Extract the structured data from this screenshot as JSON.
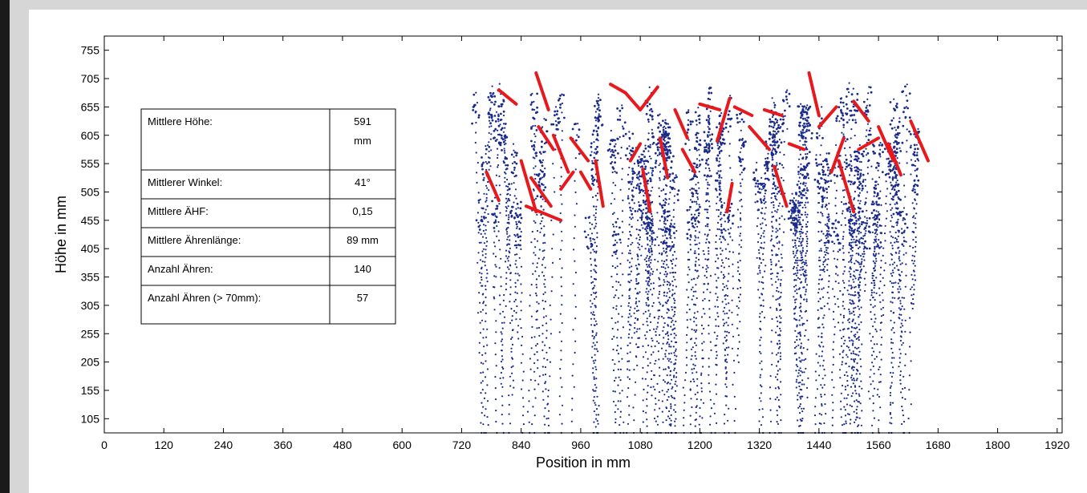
{
  "chart_data": {
    "type": "scatter",
    "title": "",
    "xlabel": "Position in mm",
    "ylabel": "Höhe in mm",
    "xlim": [
      0,
      1930
    ],
    "ylim": [
      80,
      780
    ],
    "xticks": [
      0,
      120,
      240,
      360,
      480,
      600,
      720,
      840,
      960,
      1080,
      1200,
      1320,
      1440,
      1560,
      1680,
      1800,
      1920
    ],
    "yticks": [
      105,
      155,
      205,
      255,
      305,
      355,
      405,
      455,
      505,
      555,
      605,
      655,
      705,
      755
    ],
    "grid": false,
    "point_color": "#1a2a8c",
    "line_color": "#e8191c",
    "point_cloud": {
      "x_range": [
        760,
        1680
      ],
      "y_range": [
        80,
        720
      ],
      "dense_top_band": [
        450,
        700
      ]
    },
    "ear_segments": [
      [
        [
          770,
          540
        ],
        [
          795,
          490
        ]
      ],
      [
        [
          795,
          685
        ],
        [
          830,
          660
        ]
      ],
      [
        [
          840,
          560
        ],
        [
          870,
          470
        ]
      ],
      [
        [
          850,
          480
        ],
        [
          920,
          455
        ]
      ],
      [
        [
          860,
          530
        ],
        [
          900,
          480
        ]
      ],
      [
        [
          870,
          715
        ],
        [
          895,
          650
        ]
      ],
      [
        [
          875,
          620
        ],
        [
          905,
          580
        ]
      ],
      [
        [
          905,
          605
        ],
        [
          935,
          540
        ]
      ],
      [
        [
          920,
          510
        ],
        [
          945,
          540
        ]
      ],
      [
        [
          940,
          600
        ],
        [
          975,
          560
        ]
      ],
      [
        [
          960,
          540
        ],
        [
          980,
          510
        ]
      ],
      [
        [
          990,
          560
        ],
        [
          1005,
          480
        ]
      ],
      [
        [
          1020,
          695
        ],
        [
          1050,
          680
        ]
      ],
      [
        [
          1050,
          680
        ],
        [
          1080,
          650
        ]
      ],
      [
        [
          1080,
          650
        ],
        [
          1115,
          690
        ]
      ],
      [
        [
          1060,
          560
        ],
        [
          1080,
          590
        ]
      ],
      [
        [
          1085,
          545
        ],
        [
          1100,
          470
        ]
      ],
      [
        [
          1120,
          600
        ],
        [
          1135,
          530
        ]
      ],
      [
        [
          1150,
          650
        ],
        [
          1175,
          600
        ]
      ],
      [
        [
          1165,
          580
        ],
        [
          1190,
          540
        ]
      ],
      [
        [
          1200,
          660
        ],
        [
          1240,
          650
        ]
      ],
      [
        [
          1235,
          595
        ],
        [
          1260,
          670
        ]
      ],
      [
        [
          1255,
          470
        ],
        [
          1265,
          520
        ]
      ],
      [
        [
          1270,
          655
        ],
        [
          1305,
          640
        ]
      ],
      [
        [
          1300,
          620
        ],
        [
          1340,
          580
        ]
      ],
      [
        [
          1330,
          650
        ],
        [
          1365,
          640
        ]
      ],
      [
        [
          1350,
          550
        ],
        [
          1375,
          480
        ]
      ],
      [
        [
          1380,
          590
        ],
        [
          1410,
          580
        ]
      ],
      [
        [
          1420,
          715
        ],
        [
          1440,
          640
        ]
      ],
      [
        [
          1440,
          620
        ],
        [
          1475,
          655
        ]
      ],
      [
        [
          1465,
          540
        ],
        [
          1490,
          600
        ]
      ],
      [
        [
          1480,
          560
        ],
        [
          1510,
          470
        ]
      ],
      [
        [
          1510,
          665
        ],
        [
          1540,
          630
        ]
      ],
      [
        [
          1520,
          580
        ],
        [
          1560,
          600
        ]
      ],
      [
        [
          1560,
          620
        ],
        [
          1590,
          560
        ]
      ],
      [
        [
          1580,
          590
        ],
        [
          1605,
          535
        ]
      ],
      [
        [
          1625,
          630
        ],
        [
          1660,
          560
        ]
      ]
    ],
    "table": {
      "rows": [
        {
          "label": "Mittlere Höhe:",
          "value": [
            "591",
            "mm"
          ]
        },
        {
          "label": "Mittlerer Winkel:",
          "value": [
            "41°"
          ]
        },
        {
          "label": "Mittlere ÄHF:",
          "value": [
            "0,15"
          ]
        },
        {
          "label": "Mittlere Ährenlänge:",
          "value": [
            "89 mm"
          ]
        },
        {
          "label": "Anzahl Ähren:",
          "value": [
            "140"
          ]
        },
        {
          "label": "Anzahl Ähren (> 70mm):",
          "value": [
            "57"
          ]
        }
      ]
    }
  }
}
